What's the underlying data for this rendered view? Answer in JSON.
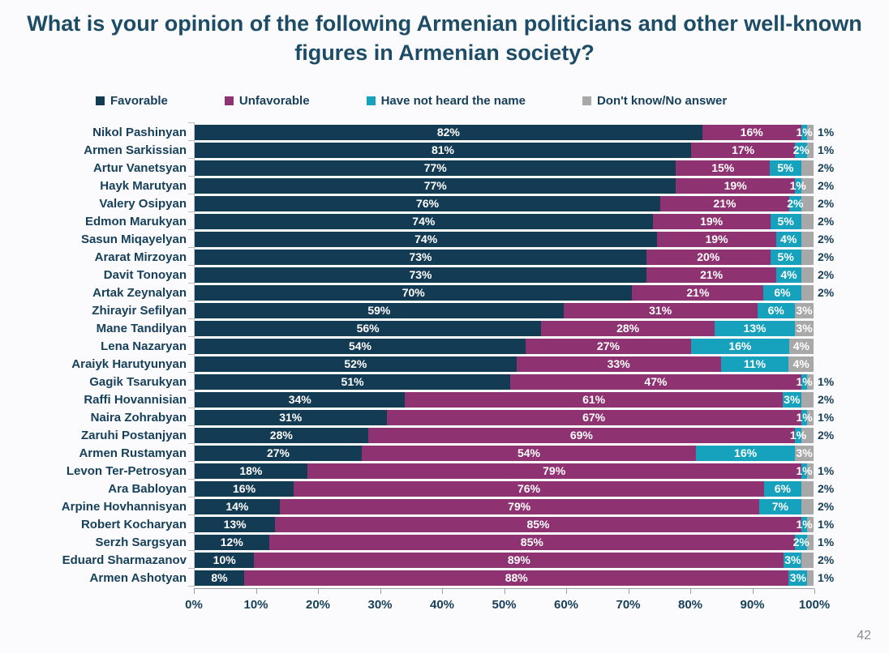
{
  "title": "What is your opinion of the following Armenian politicians and other well-known figures in Armenian society?",
  "page_number": "42",
  "legend": [
    {
      "label": "Favorable",
      "color": "#143B54"
    },
    {
      "label": "Unfavorable",
      "color": "#8E3272"
    },
    {
      "label": "Have not heard the name",
      "color": "#16A2BC"
    },
    {
      "label": "Don't know/No answer",
      "color": "#A8A8A8"
    }
  ],
  "chart_data": {
    "type": "bar",
    "orientation": "horizontal",
    "stacked": true,
    "value_suffix": "%",
    "xlim": [
      0,
      100
    ],
    "x_ticks": [
      "0%",
      "10%",
      "20%",
      "30%",
      "40%",
      "50%",
      "60%",
      "70%",
      "80%",
      "90%",
      "100%"
    ],
    "grid": false,
    "legend_position": "top",
    "categories": [
      "Nikol Pashinyan",
      "Armen Sarkissian",
      "Artur Vanetsyan",
      "Hayk Marutyan",
      "Valery Osipyan",
      "Edmon Marukyan",
      "Sasun Miqayelyan",
      "Ararat Mirzoyan",
      "Davit Tonoyan",
      "Artak Zeynalyan",
      "Zhirayir Sefilyan",
      "Mane Tandilyan",
      "Lena Nazaryan",
      "Araiyk Harutyunyan",
      "Gagik Tsarukyan",
      "Raffi Hovannisian",
      "Naira Zohrabyan",
      "Zaruhi Postanjyan",
      "Armen Rustamyan",
      "Levon Ter-Petrosyan",
      "Ara Babloyan",
      "Arpine Hovhannisyan",
      "Robert Kocharyan",
      "Serzh Sargsyan",
      "Eduard Sharmazanov",
      "Armen Ashotyan"
    ],
    "series": [
      {
        "name": "Favorable",
        "color": "#143B54",
        "values": [
          82,
          81,
          77,
          77,
          76,
          74,
          74,
          73,
          73,
          70,
          59,
          56,
          54,
          52,
          51,
          34,
          31,
          28,
          27,
          18,
          16,
          14,
          13,
          12,
          10,
          8
        ]
      },
      {
        "name": "Unfavorable",
        "color": "#8E3272",
        "values": [
          16,
          17,
          15,
          19,
          21,
          19,
          19,
          20,
          21,
          21,
          31,
          28,
          27,
          33,
          47,
          61,
          67,
          69,
          54,
          79,
          76,
          79,
          85,
          85,
          89,
          88
        ]
      },
      {
        "name": "Have not heard the name",
        "color": "#16A2BC",
        "values": [
          1,
          2,
          5,
          1,
          2,
          5,
          4,
          5,
          4,
          6,
          6,
          13,
          16,
          11,
          1,
          3,
          1,
          1,
          16,
          1,
          6,
          7,
          1,
          2,
          3,
          3
        ]
      },
      {
        "name": "Don't know/No answer",
        "color": "#A8A8A8",
        "values": [
          1,
          1,
          2,
          2,
          2,
          2,
          2,
          2,
          2,
          2,
          3,
          3,
          4,
          4,
          1,
          2,
          1,
          2,
          3,
          1,
          2,
          2,
          1,
          1,
          2,
          1
        ]
      }
    ]
  }
}
